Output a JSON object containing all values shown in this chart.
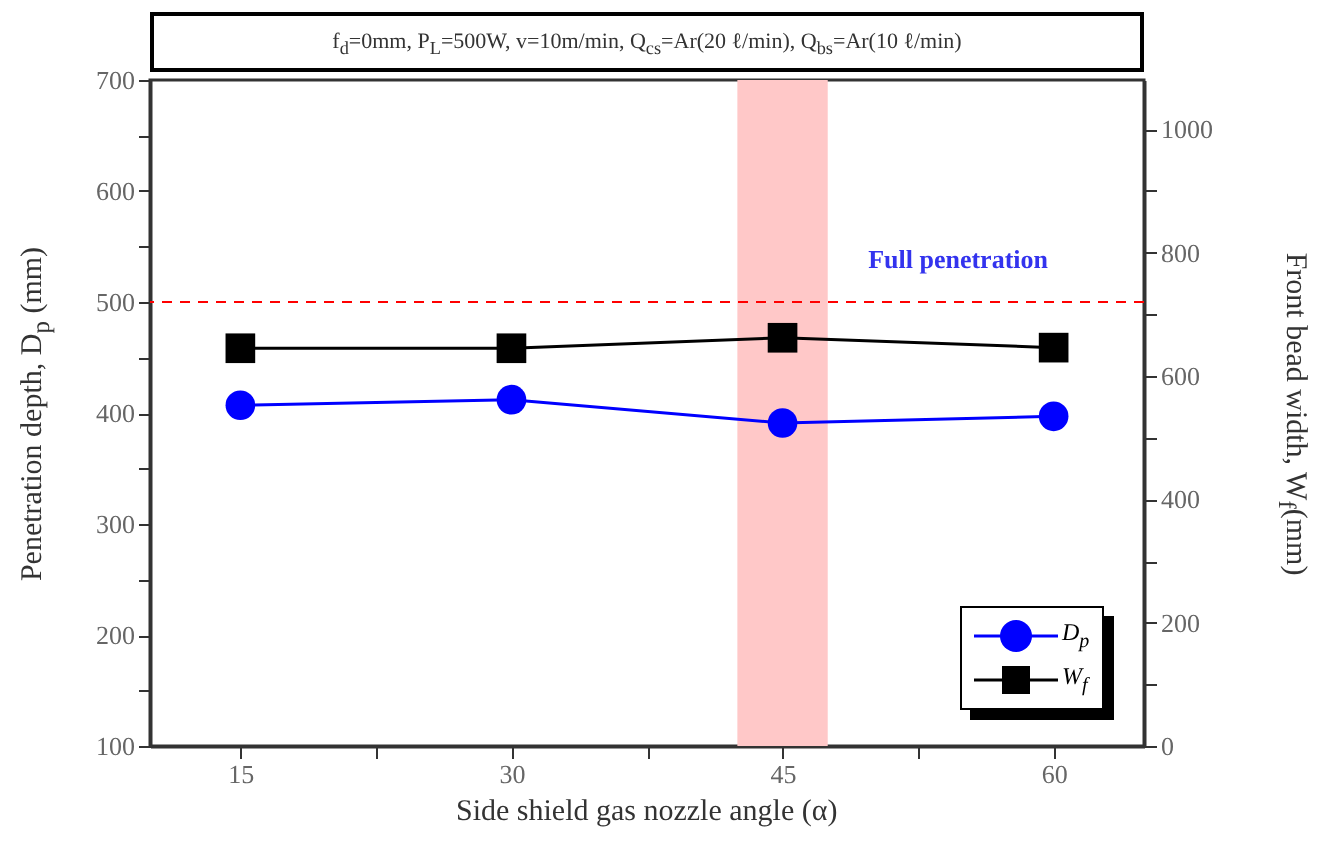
{
  "chart_data": {
    "type": "line",
    "title": "f$_{d}$=0mm, P$_{L}$=500W, v=10m/min, Q$_{cs}$=Ar(20 ℓ/min), Q$_{bs}$=Ar(10 ℓ/min)",
    "xlabel": "Side shield gas nozzle angle  (α)",
    "ylabel": "Penetration depth, D$_{p}$ (mm)",
    "y2label": "Front bead width, W$_{f}$(mm)",
    "x": [
      15,
      30,
      45,
      60
    ],
    "xlim": [
      10,
      65
    ],
    "xticks": [
      15,
      {
        "value": 22.5,
        "label": null
      },
      30,
      {
        "value": 37.5,
        "label": null
      },
      45,
      {
        "value": 52.5,
        "label": null
      },
      60
    ],
    "ylim": [
      100,
      700
    ],
    "yticks": [
      100,
      {
        "value": 150,
        "label": null
      },
      200,
      {
        "value": 250,
        "label": null
      },
      300,
      {
        "value": 350,
        "label": null
      },
      400,
      {
        "value": 450,
        "label": null
      },
      500,
      {
        "value": 550,
        "label": null
      },
      600,
      {
        "value": 650,
        "label": null
      },
      700
    ],
    "y2lim": [
      0,
      1080
    ],
    "y2ticks": [
      0,
      {
        "value": 100,
        "label": null
      },
      200,
      {
        "value": 300,
        "label": null
      },
      400,
      {
        "value": 500,
        "label": null
      },
      600,
      {
        "value": 700,
        "label": null
      },
      800,
      {
        "value": 900,
        "label": null
      },
      1000
    ],
    "series": [
      {
        "name": "D$_{p}$",
        "color": "#0000ff",
        "marker": "circle",
        "values": [
          407,
          412,
          391,
          397
        ]
      },
      {
        "name": "W$_{f}$",
        "color": "#000000",
        "marker": "square",
        "axis": "y2",
        "values": [
          645,
          645,
          662,
          646
        ]
      }
    ],
    "ref_lines": [
      {
        "axis": "y",
        "value": 500,
        "label": "Full penetration",
        "color": "#ff0000",
        "line_style": "dashed"
      }
    ],
    "bands": [
      {
        "axis": "x",
        "from": 42.5,
        "to": 47.5,
        "color": "#ffc8c8"
      }
    ],
    "legend": "bottom right",
    "grid": false
  }
}
